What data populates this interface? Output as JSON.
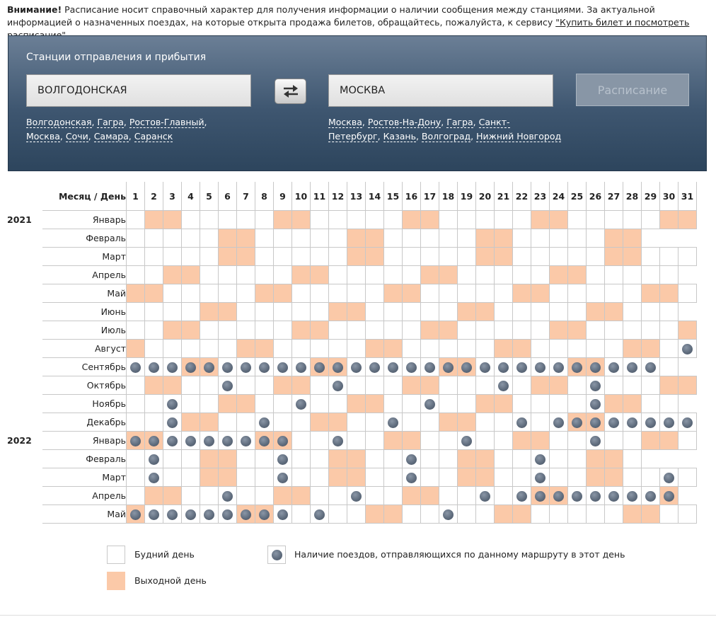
{
  "notice": {
    "bold": "Внимание!",
    "text": "Расписание носит справочный характер для получения информации о наличии сообщения между станциями. За актуальной информацией о назначенных поездах, на которые открыта продажа билетов, обращайтесь, пожалуйста, к сервису ",
    "link": "\"Купить билет и посмотреть расписание\"",
    "end": "."
  },
  "panel": {
    "title": "Станции отправления и прибытия",
    "from_value": "ВОЛГОДОНСКАЯ",
    "to_value": "МОСКВА",
    "submit_label": "Расписание",
    "from_quick": [
      "Волгодонская",
      "Гагра",
      "Ростов-Главный",
      "Москва",
      "Сочи",
      "Самара",
      "Саранск"
    ],
    "to_quick": [
      "Москва",
      "Ростов-На-Дону",
      "Гагра",
      "Санкт-Петербург",
      "Казань",
      "Волгоград",
      "Нижний Новгород"
    ]
  },
  "calendar": {
    "header": "Месяц / День",
    "days": [
      1,
      2,
      3,
      4,
      5,
      6,
      7,
      8,
      9,
      10,
      11,
      12,
      13,
      14,
      15,
      16,
      17,
      18,
      19,
      20,
      21,
      22,
      23,
      24,
      25,
      26,
      27,
      28,
      29,
      30,
      31
    ],
    "months": [
      {
        "year": "2021",
        "name": "Январь",
        "days": 31,
        "weekends": [
          2,
          3,
          9,
          10,
          16,
          17,
          23,
          24,
          30,
          31
        ],
        "trains": []
      },
      {
        "year": "",
        "name": "Февраль",
        "days": 28,
        "weekends": [
          6,
          7,
          13,
          14,
          20,
          21,
          27,
          28
        ],
        "trains": []
      },
      {
        "year": "",
        "name": "Март",
        "days": 31,
        "weekends": [
          6,
          7,
          13,
          14,
          20,
          21,
          27,
          28
        ],
        "trains": []
      },
      {
        "year": "",
        "name": "Апрель",
        "days": 30,
        "weekends": [
          3,
          4,
          10,
          11,
          17,
          18,
          24,
          25
        ],
        "trains": []
      },
      {
        "year": "",
        "name": "Май",
        "days": 31,
        "weekends": [
          1,
          2,
          8,
          9,
          15,
          16,
          22,
          23,
          29,
          30
        ],
        "trains": []
      },
      {
        "year": "",
        "name": "Июнь",
        "days": 30,
        "weekends": [
          5,
          6,
          12,
          13,
          19,
          20,
          26,
          27
        ],
        "trains": []
      },
      {
        "year": "",
        "name": "Июль",
        "days": 31,
        "weekends": [
          3,
          4,
          10,
          11,
          17,
          18,
          24,
          25,
          31
        ],
        "trains": []
      },
      {
        "year": "",
        "name": "Август",
        "days": 31,
        "weekends": [
          1,
          7,
          8,
          14,
          15,
          21,
          22,
          28,
          29
        ],
        "trains": [
          31
        ]
      },
      {
        "year": "",
        "name": "Сентябрь",
        "days": 30,
        "weekends": [
          4,
          5,
          11,
          12,
          18,
          19,
          25,
          26
        ],
        "trains": [
          1,
          2,
          3,
          4,
          5,
          6,
          7,
          8,
          9,
          10,
          11,
          12,
          13,
          14,
          15,
          16,
          17,
          18,
          19,
          20,
          21,
          22,
          23,
          24,
          25,
          26,
          27,
          28,
          29
        ]
      },
      {
        "year": "",
        "name": "Октябрь",
        "days": 31,
        "weekends": [
          2,
          3,
          9,
          10,
          16,
          17,
          23,
          24,
          30,
          31
        ],
        "trains": [
          6,
          12,
          21,
          26
        ]
      },
      {
        "year": "",
        "name": "Ноябрь",
        "days": 30,
        "weekends": [
          6,
          7,
          13,
          14,
          20,
          21,
          27,
          28
        ],
        "trains": [
          3,
          10,
          17,
          26
        ]
      },
      {
        "year": "",
        "name": "Декабрь",
        "days": 31,
        "weekends": [
          4,
          5,
          11,
          12,
          18,
          19,
          25,
          26
        ],
        "trains": [
          3,
          8,
          15,
          22,
          24,
          25,
          26,
          27,
          28,
          29,
          30,
          31
        ]
      },
      {
        "year": "2022",
        "name": "Январь",
        "days": 31,
        "weekends": [
          1,
          2,
          8,
          9,
          15,
          16,
          22,
          23,
          29,
          30
        ],
        "trains": [
          1,
          2,
          3,
          4,
          5,
          6,
          7,
          8,
          9,
          12,
          19,
          26
        ]
      },
      {
        "year": "",
        "name": "Февраль",
        "days": 28,
        "weekends": [
          5,
          6,
          12,
          13,
          19,
          20,
          26,
          27
        ],
        "trains": [
          2,
          9,
          16,
          23
        ]
      },
      {
        "year": "",
        "name": "Март",
        "days": 31,
        "weekends": [
          5,
          6,
          12,
          13,
          19,
          20,
          26,
          27
        ],
        "trains": [
          2,
          9,
          16,
          23,
          30
        ]
      },
      {
        "year": "",
        "name": "Апрель",
        "days": 30,
        "weekends": [
          2,
          3,
          9,
          10,
          16,
          17,
          23,
          24,
          30
        ],
        "trains": [
          6,
          13,
          20,
          22,
          23,
          24,
          25,
          26,
          27,
          28,
          29,
          30
        ]
      },
      {
        "year": "",
        "name": "Май",
        "days": 31,
        "weekends": [
          1,
          7,
          8,
          14,
          15,
          21,
          22,
          28,
          29
        ],
        "trains": [
          1,
          2,
          3,
          4,
          5,
          6,
          7,
          8,
          9,
          11,
          18
        ]
      }
    ]
  },
  "legend": {
    "weekday": "Будний день",
    "weekend": "Выходной день",
    "train": "Наличие поездов, отправляющихся по данному маршруту в этот день"
  },
  "colors": {
    "weekend": "#fbc9a8",
    "panel_top": "#6b7f96",
    "panel_bottom": "#2d455d",
    "train_dot": "#5d6a7b"
  }
}
